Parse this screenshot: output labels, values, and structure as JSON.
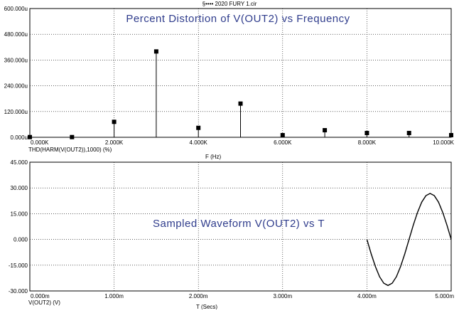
{
  "window": {
    "title": "§•••• 2020 FURY 1.cir"
  },
  "chart_data": [
    {
      "type": "bar",
      "title": "Percent Distortion of V(OUT2) vs Frequency",
      "xlabel": "F (Hz)",
      "ylabel": "THD(HARM(V(OUT2)),1000) (%)",
      "xlim": [
        0,
        10000
      ],
      "ylim": [
        0,
        600
      ],
      "grid": true,
      "x_ticks": [
        0,
        2000,
        4000,
        6000,
        8000,
        10000
      ],
      "x_tick_labels": [
        "0.000K",
        "2.000K",
        "4.000K",
        "6.000K",
        "8.000K",
        "10.000K"
      ],
      "y_ticks": [
        0,
        120,
        240,
        360,
        480,
        600
      ],
      "y_tick_labels": [
        "0.000u",
        "120.000u",
        "240.000u",
        "360.000u",
        "480.000u",
        "600.000u"
      ],
      "x": [
        0,
        1000,
        2000,
        3000,
        4000,
        5000,
        6000,
        7000,
        8000,
        9000,
        10000
      ],
      "values": [
        1,
        1,
        72,
        400,
        44,
        157,
        10,
        33,
        20,
        20,
        10
      ],
      "color": "#000000"
    },
    {
      "type": "line",
      "title": "Sampled Waveform  V(OUT2) vs T",
      "xlabel": "T (Secs)",
      "ylabel": "V(OUT2) (V)",
      "xlim": [
        0,
        5
      ],
      "ylim": [
        -30,
        45
      ],
      "grid": true,
      "x_ticks": [
        0,
        1,
        2,
        3,
        4,
        5
      ],
      "x_tick_labels": [
        "0.000m",
        "1.000m",
        "2.000m",
        "3.000m",
        "4.000m",
        "5.000m"
      ],
      "y_ticks": [
        -30,
        -15,
        0,
        15,
        30,
        45
      ],
      "y_tick_labels": [
        "-30.000",
        "-15.000",
        "0.000",
        "15.000",
        "30.000",
        "45.000"
      ],
      "series": [
        {
          "x": [
            4.0,
            4.05,
            4.1,
            4.15,
            4.2,
            4.25,
            4.3,
            4.35,
            4.4,
            4.45,
            4.5,
            4.55,
            4.6,
            4.65,
            4.7,
            4.75,
            4.8,
            4.85,
            4.9,
            4.95,
            5.0
          ],
          "y": [
            0,
            -8.3,
            -15.7,
            -21.7,
            -25.5,
            -26.8,
            -25.5,
            -21.7,
            -15.7,
            -8.3,
            0,
            8.3,
            15.7,
            21.7,
            25.5,
            26.8,
            25.5,
            21.7,
            15.7,
            8.3,
            0
          ]
        }
      ],
      "color": "#000000"
    }
  ]
}
